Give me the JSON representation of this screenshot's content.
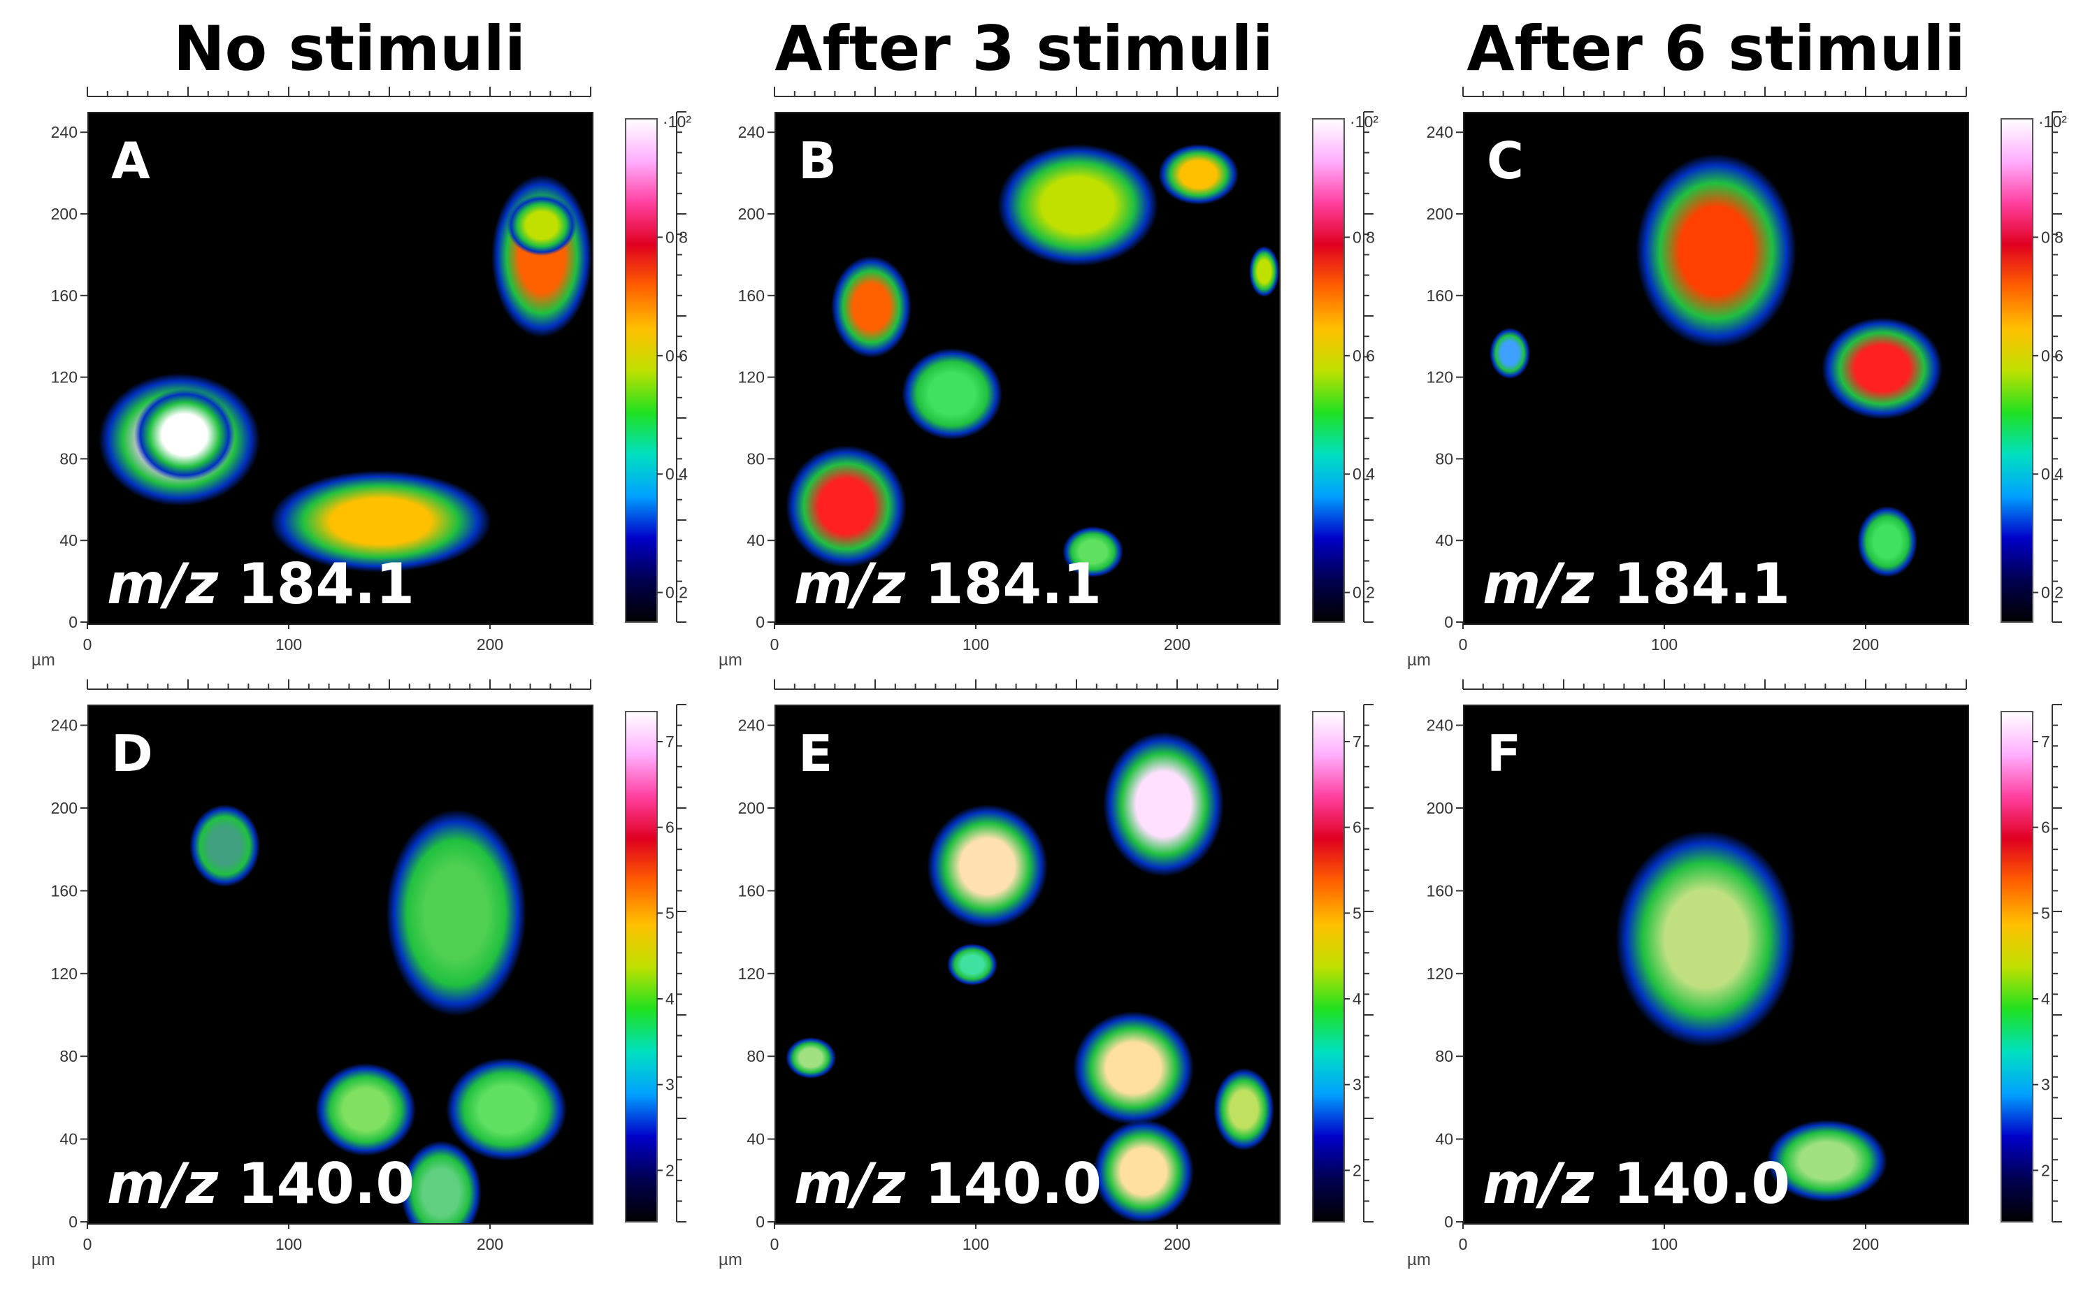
{
  "column_titles": [
    "No stimuli",
    "After 3 stimuli",
    "After 6 stimuli"
  ],
  "axis_unit": "µm",
  "x_ticks": [
    "0",
    "100",
    "200"
  ],
  "y_ticks": [
    "0",
    "40",
    "80",
    "120",
    "160",
    "200",
    "240"
  ],
  "panels": [
    {
      "letter": "A",
      "mz_prefix": "m/z",
      "mz_value": "184.1",
      "colorbar": {
        "ticks": [
          "0.2",
          "0.4",
          "0.6",
          "0.8"
        ],
        "top_label": "·10²"
      }
    },
    {
      "letter": "B",
      "mz_prefix": "m/z",
      "mz_value": "184.1",
      "colorbar": {
        "ticks": [
          "0.2",
          "0.4",
          "0.6",
          "0.8"
        ],
        "top_label": "·10²"
      }
    },
    {
      "letter": "C",
      "mz_prefix": "m/z",
      "mz_value": "184.1",
      "colorbar": {
        "ticks": [
          "0.2",
          "0.4",
          "0.6",
          "0.8"
        ],
        "top_label": "·10²"
      }
    },
    {
      "letter": "D",
      "mz_prefix": "m/z",
      "mz_value": "140.0",
      "colorbar": {
        "ticks": [
          "2",
          "3",
          "4",
          "5",
          "6",
          "7"
        ],
        "top_label": ""
      }
    },
    {
      "letter": "E",
      "mz_prefix": "m/z",
      "mz_value": "140.0",
      "colorbar": {
        "ticks": [
          "2",
          "3",
          "4",
          "5",
          "6",
          "7"
        ],
        "top_label": ""
      }
    },
    {
      "letter": "F",
      "mz_prefix": "m/z",
      "mz_value": "140.0",
      "colorbar": {
        "ticks": [
          "2",
          "3",
          "4",
          "5",
          "6",
          "7"
        ],
        "top_label": ""
      }
    }
  ],
  "colormap": [
    "#000000",
    "#000050",
    "#0000c8",
    "#00a0ff",
    "#00e0c0",
    "#20e020",
    "#c0e000",
    "#ffc000",
    "#ff6000",
    "#e00020",
    "#ff40a0",
    "#ffb0ff",
    "#ffffff"
  ]
}
